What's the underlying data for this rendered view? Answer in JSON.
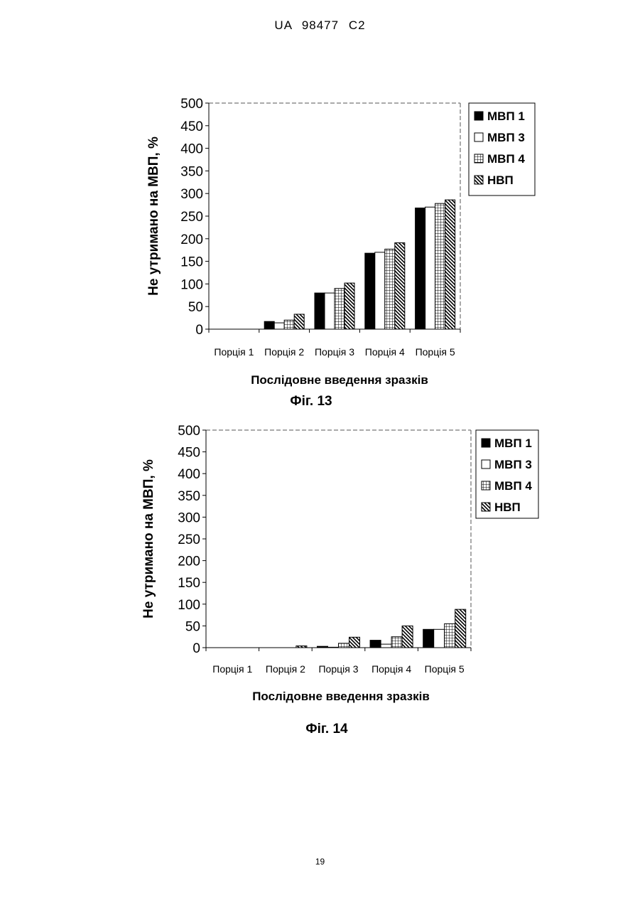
{
  "header": {
    "doc_code": "UA 98477 C2"
  },
  "page_number": "19",
  "chart_data": [
    {
      "type": "bar",
      "figure_label": "Фіг. 13",
      "xlabel": "Послідовне введення зразків",
      "ylabel": "Не утримано на МВП, %",
      "categories": [
        "Порція 1",
        "Порція 2",
        "Порція 3",
        "Порція 4",
        "Порція 5"
      ],
      "ylim": [
        0,
        500
      ],
      "yticks": [
        0,
        50,
        100,
        150,
        200,
        250,
        300,
        350,
        400,
        450,
        500
      ],
      "legend_position": "right",
      "grid": false,
      "series": [
        {
          "name": "МВП 1",
          "pattern": "solid",
          "values": [
            0,
            17,
            80,
            168,
            268
          ]
        },
        {
          "name": "МВП 3",
          "pattern": "empty",
          "values": [
            0,
            14,
            80,
            170,
            270
          ]
        },
        {
          "name": "МВП 4",
          "pattern": "grid",
          "values": [
            0,
            20,
            90,
            177,
            278
          ]
        },
        {
          "name": "НВП",
          "pattern": "diagonal",
          "values": [
            0,
            33,
            102,
            191,
            286
          ]
        }
      ]
    },
    {
      "type": "bar",
      "figure_label": "Фіг. 14",
      "xlabel": "Послідовне введення зразків",
      "ylabel": "Не утримано на МВП, %",
      "categories": [
        "Порція 1",
        "Порція 2",
        "Порція 3",
        "Порція 4",
        "Порція 5"
      ],
      "ylim": [
        0,
        500
      ],
      "yticks": [
        0,
        50,
        100,
        150,
        200,
        250,
        300,
        350,
        400,
        450,
        500
      ],
      "legend_position": "right",
      "grid": false,
      "series": [
        {
          "name": "МВП 1",
          "pattern": "solid",
          "values": [
            0,
            0,
            3,
            17,
            42
          ]
        },
        {
          "name": "МВП 3",
          "pattern": "empty",
          "values": [
            0,
            0,
            1,
            8,
            42
          ]
        },
        {
          "name": "МВП 4",
          "pattern": "grid",
          "values": [
            0,
            0,
            10,
            25,
            55
          ]
        },
        {
          "name": "НВП",
          "pattern": "diagonal",
          "values": [
            0,
            4,
            24,
            50,
            88
          ]
        }
      ]
    }
  ]
}
